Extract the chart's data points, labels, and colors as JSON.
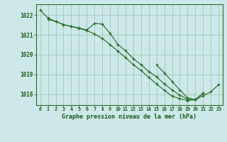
{
  "title": "Graphe pression niveau de la mer (hPa)",
  "hours": [
    0,
    1,
    2,
    3,
    4,
    5,
    6,
    7,
    8,
    9,
    10,
    11,
    12,
    13,
    14,
    15,
    16,
    17,
    18,
    19,
    20,
    21,
    22,
    23
  ],
  "line1_x": [
    0,
    1,
    2,
    3,
    4,
    5,
    6,
    7,
    8,
    9,
    10,
    11,
    12,
    13,
    14,
    15,
    16,
    17,
    18,
    19,
    20,
    21
  ],
  "line1_y": [
    1022.25,
    1021.85,
    1021.68,
    1021.52,
    1021.43,
    1021.33,
    1021.22,
    1021.05,
    1020.82,
    1020.52,
    1020.18,
    1019.85,
    1019.5,
    1019.2,
    1018.85,
    1018.52,
    1018.2,
    1017.9,
    1017.78,
    1017.68,
    1017.72,
    1018.05
  ],
  "line2_x": [
    1,
    2,
    3,
    4,
    5,
    6,
    7,
    8,
    9,
    10,
    11,
    12,
    13,
    14,
    15,
    16,
    17,
    18,
    19,
    20,
    21
  ],
  "line2_y": [
    1021.78,
    1021.68,
    1021.52,
    1021.43,
    1021.35,
    1021.25,
    1021.58,
    1021.55,
    1021.08,
    1020.52,
    1020.2,
    1019.8,
    1019.5,
    1019.15,
    1018.88,
    1018.52,
    1018.22,
    1017.95,
    1017.75,
    1017.72,
    1018.05
  ],
  "line3_x": [
    15,
    16,
    17,
    18,
    19,
    20,
    21,
    22,
    23
  ],
  "line3_y": [
    1019.48,
    1019.08,
    1018.65,
    1018.22,
    1017.82,
    1017.72,
    1017.92,
    1018.12,
    1018.48
  ],
  "ylim_min": 1017.45,
  "ylim_max": 1022.55,
  "yticks": [
    1018,
    1019,
    1020,
    1021,
    1022
  ],
  "line_color": "#2a6e2a",
  "bg_color": "#cce8e8",
  "grid_color": "#99c4ae",
  "axis_color": "#2a6e2a",
  "title_color": "#1a5c1a",
  "tick_color": "#1a5c1a"
}
